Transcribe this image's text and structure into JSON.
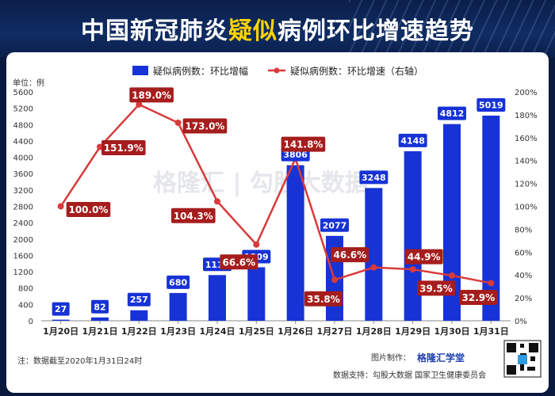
{
  "title_part1": "中国新冠肺炎",
  "title_highlight": "疑似",
  "title_part2": "病例环比增速趋势",
  "chart_data": {
    "type": "bar+line",
    "categories": [
      "1月20日",
      "1月21日",
      "1月22日",
      "1月23日",
      "1月24日",
      "1月25日",
      "1月26日",
      "1月27日",
      "1月28日",
      "1月29日",
      "1月30日",
      "1月31日"
    ],
    "series": [
      {
        "name": "疑似病例数：环比增幅",
        "type": "bar",
        "axis": "left",
        "values": [
          27,
          82,
          257,
          680,
          1118,
          1309,
          3806,
          2077,
          3248,
          4148,
          4812,
          5019
        ],
        "labels": [
          "27",
          "82",
          "257",
          "680",
          "1118",
          "1309",
          "3806",
          "2077",
          "3248",
          "4148",
          "4812",
          "5019"
        ]
      },
      {
        "name": "疑似病例数：环比增速（右轴）",
        "type": "line",
        "axis": "right",
        "values": [
          100.0,
          151.9,
          189.0,
          173.0,
          104.3,
          66.6,
          141.8,
          35.8,
          46.6,
          44.9,
          39.5,
          32.9
        ],
        "labels": [
          "100.0%",
          "151.9%",
          "189.0%",
          "173.0%",
          "104.3%",
          "66.6%",
          "141.8%",
          "35.8%",
          "46.6%",
          "44.9%",
          "39.5%",
          "32.9%"
        ]
      }
    ],
    "ylabel": "单位：例",
    "ylim": [
      0,
      5600
    ],
    "yticks": [
      "0",
      "400",
      "800",
      "1200",
      "1600",
      "2000",
      "2400",
      "2800",
      "3200",
      "3600",
      "4000",
      "4400",
      "4800",
      "5200",
      "5600"
    ],
    "y2lim": [
      0,
      200
    ],
    "y2ticks": [
      "0%",
      "20%",
      "40%",
      "60%",
      "80%",
      "100%",
      "120%",
      "140%",
      "160%",
      "180%",
      "200%"
    ],
    "legend_position": "top-center",
    "grid": false,
    "colors": {
      "bar": "#1733d6",
      "line": "#d93a3a",
      "line_label_bg": "#a61d1d",
      "highlight": "#ffd400"
    }
  },
  "note": "注：数据截至2020年1月31日24时",
  "credit_prefix": "图片制作：",
  "credit_brand": "格隆汇学堂",
  "source": "数据支持：勾股大数据  国家卫生健康委员会",
  "watermark": "格隆汇 | 勾股大数据"
}
